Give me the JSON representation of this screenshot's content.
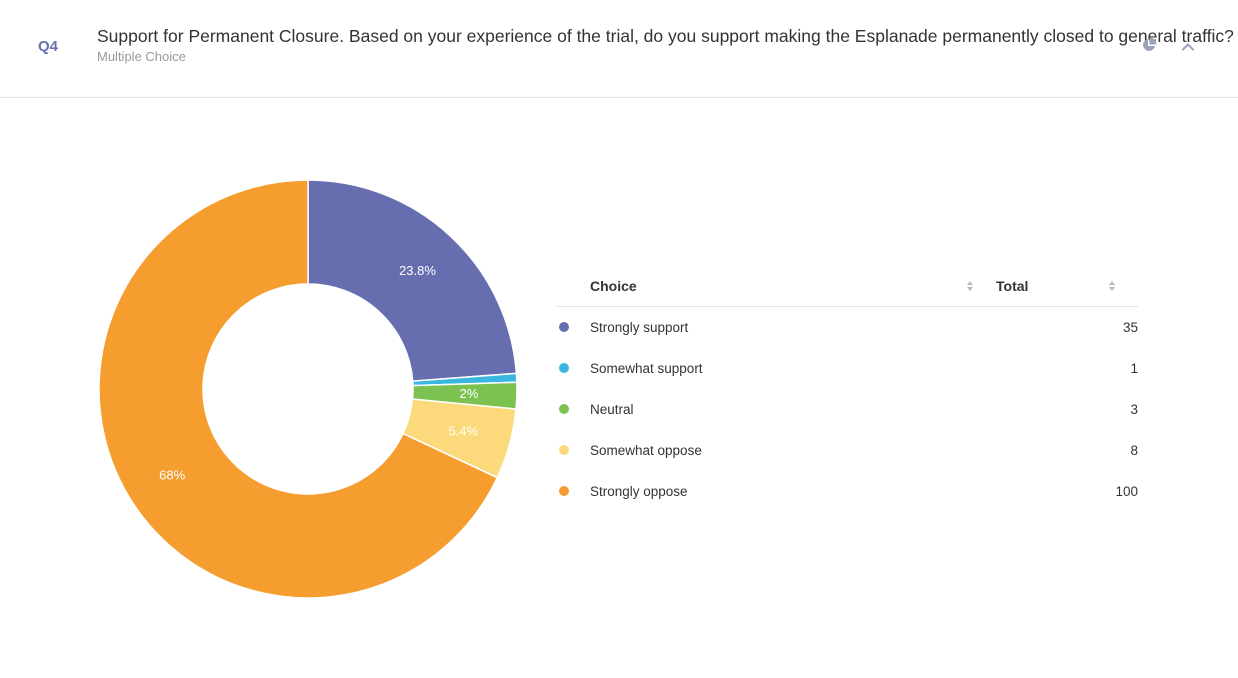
{
  "question": {
    "number": "Q4",
    "title": "Support for Permanent Closure. Based on your experience of the trial, do you support making the Esplanade permanently closed to general traffic?",
    "type": "Multiple Choice"
  },
  "icons": {
    "chart": "pie-chart-icon",
    "collapse": "chevron-up-icon",
    "sort": "sort-icon"
  },
  "table": {
    "choice_header": "Choice",
    "total_header": "Total"
  },
  "chart_data": {
    "type": "pie",
    "donut": true,
    "categories": [
      "Strongly support",
      "Somewhat support",
      "Neutral",
      "Somewhat oppose",
      "Strongly oppose"
    ],
    "values": [
      35,
      1,
      3,
      8,
      100
    ],
    "labels": [
      "23.8%",
      "",
      "2%",
      "5.4%",
      "68%"
    ],
    "colors": [
      "#666eb0",
      "#38b8e0",
      "#7cc251",
      "#fcd97a",
      "#f59d2f"
    ],
    "start_angle_deg": 0,
    "direction": "clockwise"
  }
}
